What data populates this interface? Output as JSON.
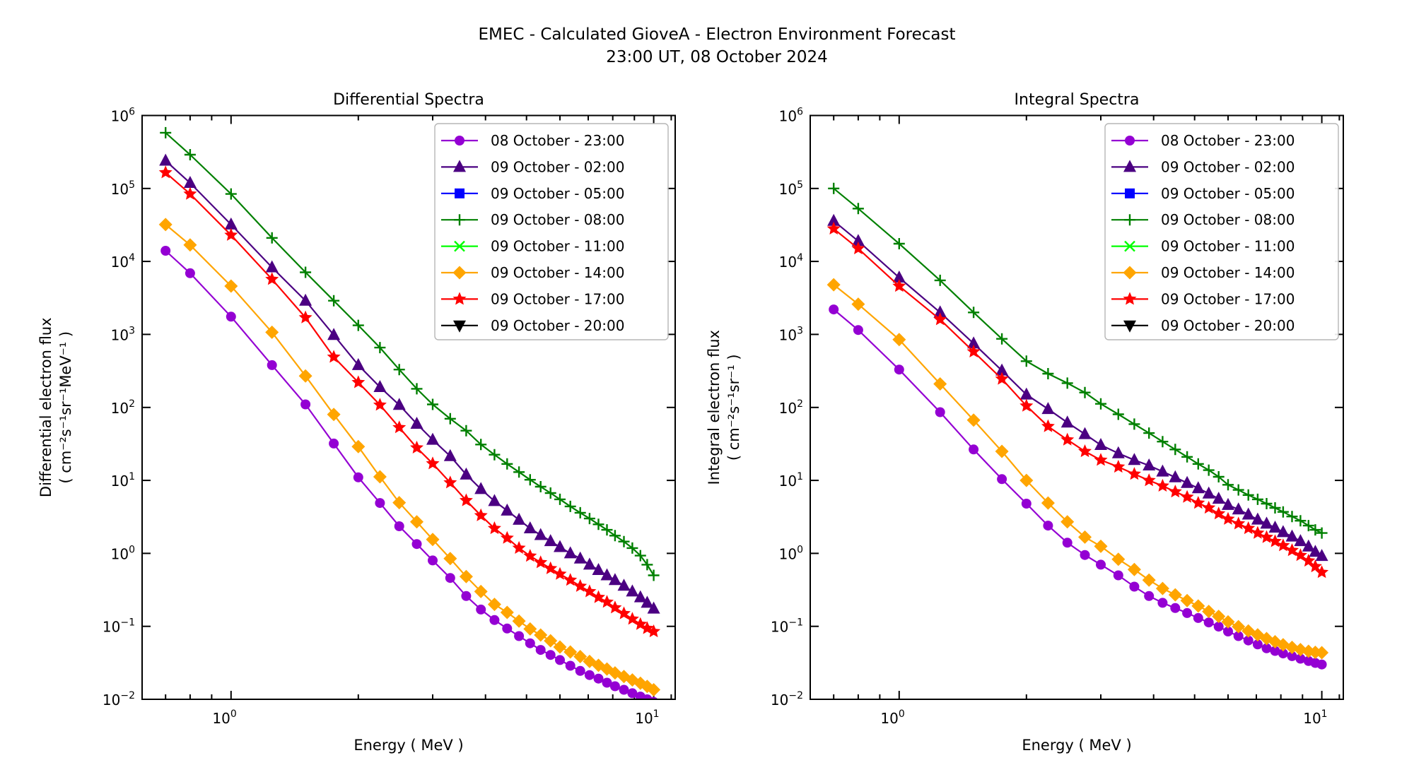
{
  "figure": {
    "suptitle_line1": "EMEC - Calculated GioveA - Electron Environment Forecast",
    "suptitle_line2": "23:00 UT, 08 October 2024",
    "background": "#ffffff",
    "text_color": "#000000"
  },
  "legend": {
    "entries": [
      {
        "label": "08 October - 23:00",
        "color": "#9400d3",
        "marker": "circle"
      },
      {
        "label": "09 October - 02:00",
        "color": "#4b0082",
        "marker": "triangle-up"
      },
      {
        "label": "09 October - 05:00",
        "color": "#0000ff",
        "marker": "square"
      },
      {
        "label": "09 October - 08:00",
        "color": "#008000",
        "marker": "plus"
      },
      {
        "label": "09 October - 11:00",
        "color": "#00ff00",
        "marker": "x"
      },
      {
        "label": "09 October - 14:00",
        "color": "#ffa500",
        "marker": "diamond"
      },
      {
        "label": "09 October - 17:00",
        "color": "#ff0000",
        "marker": "star"
      },
      {
        "label": "09 October - 20:00",
        "color": "#000000",
        "marker": "triangle-down"
      }
    ]
  },
  "chart_data": [
    {
      "type": "line",
      "title": "Differential Spectra",
      "xlabel": "Energy ( MeV )",
      "ylabel_line1": "Differential electron flux",
      "ylabel_line2": "( cm⁻²s⁻¹sr⁻¹MeV⁻¹ )",
      "xscale": "log",
      "yscale": "log",
      "xlim": [
        0.616,
        11.24
      ],
      "ylim": [
        0.01,
        1000000
      ],
      "x_major_ticks": [
        {
          "value": 1,
          "exp": 0
        },
        {
          "value": 10,
          "exp": 1
        }
      ],
      "x_minor_ticks": [
        0.7,
        0.8,
        0.9,
        2,
        3,
        4,
        5,
        6,
        7,
        8,
        9,
        11
      ],
      "y_tick_exponents": [
        6,
        5,
        4,
        3,
        2,
        1,
        0,
        -1,
        -2
      ],
      "legend_position": "upper right",
      "x": [
        0.7,
        0.8,
        1.0,
        1.25,
        1.5,
        1.75,
        2.0,
        2.25,
        2.5,
        2.75,
        3.0,
        3.3,
        3.6,
        3.9,
        4.2,
        4.5,
        4.8,
        5.1,
        5.4,
        5.7,
        6.0,
        6.35,
        6.7,
        7.05,
        7.4,
        7.75,
        8.1,
        8.5,
        8.9,
        9.3,
        9.65,
        10.0
      ],
      "series": [
        {
          "name": "08 October - 23:00",
          "color": "#9400d3",
          "marker": "circle",
          "plotted": true,
          "values": [
            14000,
            6900,
            1750,
            380,
            110,
            32,
            11,
            4.9,
            2.35,
            1.34,
            0.8,
            0.46,
            0.26,
            0.17,
            0.122,
            0.0933,
            0.0735,
            0.0585,
            0.0475,
            0.0405,
            0.0345,
            0.0288,
            0.0245,
            0.0215,
            0.0192,
            0.0169,
            0.0151,
            0.0135,
            0.0121,
            0.0109,
            0.01,
            0.0092
          ]
        },
        {
          "name": "09 October - 02:00",
          "color": "#4b0082",
          "marker": "triangle-up",
          "plotted": true,
          "values": [
            240000,
            119000,
            32000,
            8300,
            2900,
            980,
            380,
            190,
            108,
            59.5,
            36,
            21.5,
            12,
            7.6,
            5.2,
            3.85,
            2.88,
            2.2,
            1.78,
            1.47,
            1.22,
            1.0,
            0.85,
            0.7,
            0.59,
            0.5,
            0.43,
            0.36,
            0.3,
            0.25,
            0.21,
            0.175
          ]
        },
        {
          "name": "09 October - 05:00",
          "color": "#0000ff",
          "marker": "square",
          "plotted": false,
          "values": []
        },
        {
          "name": "09 October - 08:00",
          "color": "#008000",
          "marker": "plus",
          "plotted": true,
          "values": [
            580000,
            290000,
            84000,
            21000,
            7100,
            2900,
            1330,
            660,
            330,
            180,
            110,
            70,
            48,
            31,
            22.5,
            16.8,
            13.0,
            10.2,
            8.2,
            6.7,
            5.5,
            4.4,
            3.6,
            3.0,
            2.5,
            2.1,
            1.75,
            1.45,
            1.18,
            0.93,
            0.7,
            0.5
          ]
        },
        {
          "name": "09 October - 11:00",
          "color": "#00ff00",
          "marker": "x",
          "plotted": false,
          "values": []
        },
        {
          "name": "09 October - 14:00",
          "color": "#ffa500",
          "marker": "diamond",
          "plotted": true,
          "values": [
            32000,
            16800,
            4600,
            1070,
            270,
            80,
            29,
            11.2,
            4.95,
            2.7,
            1.55,
            0.85,
            0.48,
            0.3,
            0.2,
            0.155,
            0.118,
            0.092,
            0.076,
            0.0635,
            0.052,
            0.0445,
            0.0385,
            0.033,
            0.0292,
            0.026,
            0.023,
            0.0205,
            0.0184,
            0.0166,
            0.015,
            0.0135
          ]
        },
        {
          "name": "09 October - 17:00",
          "color": "#ff0000",
          "marker": "star",
          "plotted": true,
          "values": [
            165000,
            84000,
            23000,
            5700,
            1700,
            490,
            220,
            108,
            53,
            28,
            17,
            9.3,
            5.3,
            3.3,
            2.2,
            1.62,
            1.18,
            0.92,
            0.75,
            0.62,
            0.52,
            0.43,
            0.355,
            0.3,
            0.25,
            0.215,
            0.18,
            0.15,
            0.126,
            0.107,
            0.094,
            0.085
          ]
        },
        {
          "name": "09 October - 20:00",
          "color": "#000000",
          "marker": "triangle-down",
          "plotted": false,
          "values": []
        }
      ]
    },
    {
      "type": "line",
      "title": "Integral Spectra",
      "xlabel": "Energy ( MeV )",
      "ylabel_line1": "Integral electron flux",
      "ylabel_line2": "( cm⁻²s⁻¹sr⁻¹ )",
      "xscale": "log",
      "yscale": "log",
      "xlim": [
        0.616,
        11.24
      ],
      "ylim": [
        0.01,
        1000000
      ],
      "x_major_ticks": [
        {
          "value": 1,
          "exp": 0
        },
        {
          "value": 10,
          "exp": 1
        }
      ],
      "x_minor_ticks": [
        0.7,
        0.8,
        0.9,
        2,
        3,
        4,
        5,
        6,
        7,
        8,
        9,
        11
      ],
      "y_tick_exponents": [
        6,
        5,
        4,
        3,
        2,
        1,
        0,
        -1,
        -2
      ],
      "legend_position": "upper right",
      "x": [
        0.7,
        0.8,
        1.0,
        1.25,
        1.5,
        1.75,
        2.0,
        2.25,
        2.5,
        2.75,
        3.0,
        3.3,
        3.6,
        3.9,
        4.2,
        4.5,
        4.8,
        5.1,
        5.4,
        5.7,
        6.0,
        6.35,
        6.7,
        7.05,
        7.4,
        7.75,
        8.1,
        8.5,
        8.9,
        9.3,
        9.65,
        10.0
      ],
      "series": [
        {
          "name": "08 October - 23:00",
          "color": "#9400d3",
          "marker": "circle",
          "plotted": true,
          "values": [
            2200,
            1150,
            330,
            86,
            26.5,
            10.4,
            4.8,
            2.4,
            1.4,
            0.95,
            0.7,
            0.5,
            0.35,
            0.26,
            0.21,
            0.178,
            0.152,
            0.13,
            0.113,
            0.099,
            0.085,
            0.0735,
            0.064,
            0.0565,
            0.05,
            0.046,
            0.0425,
            0.039,
            0.036,
            0.0335,
            0.0315,
            0.03
          ]
        },
        {
          "name": "09 October - 02:00",
          "color": "#4b0082",
          "marker": "triangle-up",
          "plotted": true,
          "values": [
            36000,
            19000,
            6000,
            2000,
            750,
            320,
            150,
            95,
            62,
            43,
            30.5,
            23.5,
            19,
            16,
            13.2,
            11,
            9.2,
            7.8,
            6.6,
            5.6,
            4.6,
            4.0,
            3.4,
            2.9,
            2.55,
            2.25,
            1.95,
            1.7,
            1.47,
            1.24,
            1.05,
            0.92
          ]
        },
        {
          "name": "09 October - 05:00",
          "color": "#0000ff",
          "marker": "square",
          "plotted": false,
          "values": []
        },
        {
          "name": "09 October - 08:00",
          "color": "#008000",
          "marker": "plus",
          "plotted": true,
          "values": [
            100000,
            53000,
            17500,
            5500,
            2000,
            870,
            430,
            290,
            215,
            160,
            112,
            80.5,
            59,
            44.5,
            34,
            26.5,
            21,
            16.8,
            13.8,
            11.2,
            8.7,
            7.4,
            6.3,
            5.5,
            4.8,
            4.2,
            3.7,
            3.2,
            2.8,
            2.4,
            2.1,
            1.9
          ]
        },
        {
          "name": "09 October - 11:00",
          "color": "#00ff00",
          "marker": "x",
          "plotted": false,
          "values": []
        },
        {
          "name": "09 October - 14:00",
          "color": "#ffa500",
          "marker": "diamond",
          "plotted": true,
          "values": [
            4800,
            2600,
            850,
            210,
            67,
            25,
            10,
            4.9,
            2.7,
            1.67,
            1.25,
            0.83,
            0.6,
            0.43,
            0.33,
            0.27,
            0.225,
            0.19,
            0.16,
            0.137,
            0.115,
            0.099,
            0.0865,
            0.0765,
            0.068,
            0.0615,
            0.056,
            0.0515,
            0.048,
            0.0455,
            0.044,
            0.0435
          ]
        },
        {
          "name": "09 October - 17:00",
          "color": "#ff0000",
          "marker": "star",
          "plotted": true,
          "values": [
            28000,
            15000,
            4600,
            1600,
            580,
            245,
            105,
            55,
            36,
            25,
            19,
            15.3,
            12.2,
            10.0,
            8.4,
            7.0,
            5.9,
            4.9,
            4.2,
            3.5,
            2.95,
            2.55,
            2.2,
            1.9,
            1.66,
            1.46,
            1.28,
            1.1,
            0.94,
            0.79,
            0.66,
            0.55
          ]
        },
        {
          "name": "09 October - 20:00",
          "color": "#000000",
          "marker": "triangle-down",
          "plotted": false,
          "values": []
        }
      ]
    }
  ]
}
